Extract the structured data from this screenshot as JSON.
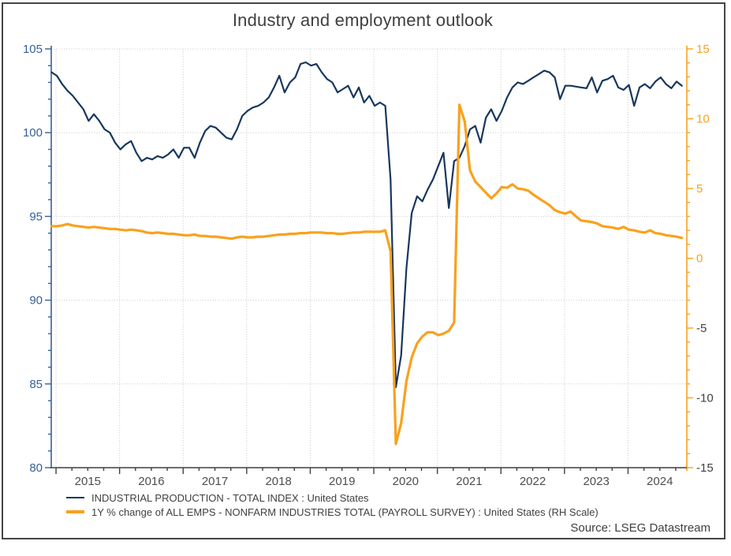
{
  "source": {
    "text": "Source: LSEG Datastream"
  },
  "palette": {
    "frame_border": "#454545",
    "title_text": "#3f3f3f",
    "legend_text": "#404040",
    "x_label_text": "#4d4d4d",
    "gridline": "#c6c6c6",
    "bottom_axis": "#3f3f3f"
  },
  "chart_data": {
    "type": "line",
    "title": "Industry and employment outlook",
    "frequency": "monthly",
    "x_domain": [
      2014.925,
      2024.925
    ],
    "x_points_start": 2014.93,
    "x_points_step_years": 0.0833333,
    "x_tick_years": [
      2015,
      2016,
      2017,
      2018,
      2019,
      2020,
      2021,
      2022,
      2023,
      2024
    ],
    "x_tick_labels": [
      "2015",
      "2016",
      "2017",
      "2018",
      "2019",
      "2020",
      "2021",
      "2022",
      "2023",
      "2024"
    ],
    "grid": true,
    "legend_position": "bottom-left",
    "left_axis": {
      "min": 80,
      "max": 105,
      "ticks": [
        105,
        100,
        95,
        90,
        85,
        80
      ],
      "minor_step": 1,
      "color": "#36609A"
    },
    "right_axis": {
      "min": -15,
      "max": 15,
      "ticks": [
        15,
        10,
        5,
        0,
        -5,
        -10,
        -15
      ],
      "minor_step": 1,
      "color": "#F9A11D",
      "negative_label_color": "#404040"
    },
    "series": [
      {
        "name": "INDUSTRIAL PRODUCTION - TOTAL INDEX : United States",
        "axis": "left",
        "color": "#17375E",
        "stroke_width": 2.2,
        "values": [
          103.6,
          103.4,
          102.9,
          102.5,
          102.2,
          101.8,
          101.4,
          100.7,
          101.1,
          100.7,
          100.2,
          100.0,
          99.4,
          99.0,
          99.3,
          99.5,
          98.8,
          98.3,
          98.5,
          98.4,
          98.6,
          98.5,
          98.7,
          99.0,
          98.5,
          99.1,
          99.1,
          98.5,
          99.4,
          100.1,
          100.4,
          100.3,
          100.0,
          99.7,
          99.6,
          100.2,
          101.0,
          101.3,
          101.5,
          101.6,
          101.8,
          102.1,
          102.7,
          103.4,
          102.4,
          103.0,
          103.3,
          104.1,
          104.2,
          104.0,
          104.1,
          103.6,
          103.2,
          103.0,
          102.4,
          102.6,
          102.8,
          102.1,
          102.7,
          101.8,
          102.2,
          101.6,
          101.8,
          101.6,
          97.2,
          84.8,
          86.7,
          91.9,
          95.2,
          96.2,
          95.9,
          96.6,
          97.2,
          98.0,
          98.8,
          95.5,
          98.3,
          98.5,
          99.2,
          100.2,
          100.4,
          99.4,
          100.9,
          101.4,
          100.7,
          101.3,
          102.1,
          102.7,
          103.0,
          102.9,
          103.1,
          103.3,
          103.5,
          103.7,
          103.6,
          103.3,
          102.0,
          102.8,
          102.8,
          102.75,
          102.7,
          102.65,
          103.3,
          102.4,
          103.1,
          103.2,
          103.4,
          102.7,
          102.55,
          102.85,
          101.6,
          102.7,
          102.9,
          102.65,
          103.05,
          103.3,
          102.9,
          102.65,
          103.05,
          102.8
        ]
      },
      {
        "name": "1Y % change of ALL EMPS - NONFARM INDUSTRIES TOTAL (PAYROLL SURVEY) : United States (RH Scale)",
        "axis": "right",
        "color": "#F9A11D",
        "stroke_width": 3.2,
        "values": [
          2.3,
          2.3,
          2.35,
          2.45,
          2.35,
          2.3,
          2.25,
          2.2,
          2.25,
          2.2,
          2.15,
          2.1,
          2.1,
          2.05,
          2.0,
          2.05,
          2.0,
          1.95,
          1.85,
          1.8,
          1.85,
          1.8,
          1.75,
          1.75,
          1.7,
          1.65,
          1.65,
          1.7,
          1.6,
          1.6,
          1.55,
          1.55,
          1.5,
          1.45,
          1.4,
          1.5,
          1.55,
          1.5,
          1.5,
          1.55,
          1.55,
          1.6,
          1.65,
          1.7,
          1.7,
          1.75,
          1.75,
          1.8,
          1.8,
          1.85,
          1.85,
          1.85,
          1.8,
          1.8,
          1.75,
          1.75,
          1.8,
          1.85,
          1.85,
          1.9,
          1.9,
          1.9,
          1.9,
          2.0,
          0.5,
          -13.3,
          -11.8,
          -8.8,
          -7.1,
          -6.1,
          -5.6,
          -5.3,
          -5.3,
          -5.5,
          -5.4,
          -5.2,
          -4.6,
          11.0,
          9.8,
          6.3,
          5.5,
          5.1,
          4.7,
          4.3,
          4.65,
          5.1,
          5.05,
          5.3,
          5.0,
          4.95,
          4.85,
          4.55,
          4.3,
          4.05,
          3.8,
          3.45,
          3.3,
          3.2,
          3.35,
          3.0,
          2.7,
          2.65,
          2.6,
          2.5,
          2.3,
          2.25,
          2.2,
          2.1,
          2.25,
          2.05,
          2.0,
          1.9,
          1.85,
          2.0,
          1.8,
          1.75,
          1.65,
          1.6,
          1.55,
          1.45
        ]
      }
    ]
  }
}
